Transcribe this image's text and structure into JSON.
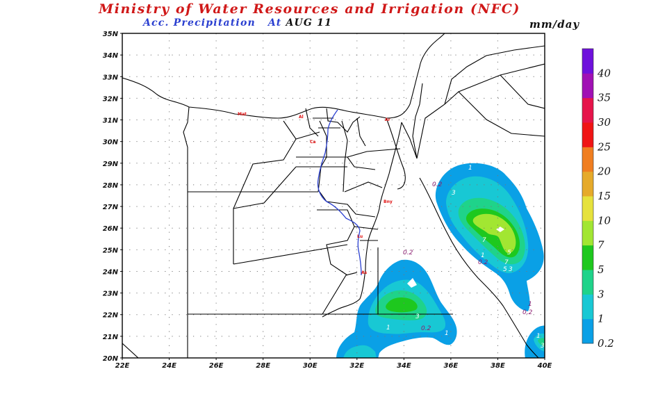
{
  "header": {
    "title": "Ministry of Water Resources and Irrigation (NFC)",
    "subtitle_prefix": "Acc. Precipitation",
    "subtitle_at": "At",
    "subtitle_date": "AUG 11",
    "units": "mm/day"
  },
  "axes": {
    "lat_labels": [
      "35N",
      "34N",
      "33N",
      "32N",
      "31N",
      "30N",
      "29N",
      "28N",
      "27N",
      "26N",
      "25N",
      "24N",
      "23N",
      "22N",
      "21N",
      "20N"
    ],
    "lon_labels": [
      "22E",
      "24E",
      "26E",
      "28E",
      "30E",
      "32E",
      "34E",
      "36E",
      "38E",
      "40E"
    ]
  },
  "colorbar": {
    "levels": [
      "0.2",
      "1",
      "3",
      "5",
      "7",
      "10",
      "15",
      "20",
      "25",
      "30",
      "35",
      "40"
    ],
    "colors": [
      "#0aa0e6",
      "#18c8d4",
      "#1fd38a",
      "#1ec81e",
      "#a2e632",
      "#e6e23c",
      "#e6aa2a",
      "#f07e20",
      "#f01414",
      "#e6144a",
      "#a010b4",
      "#6e10dc"
    ]
  },
  "map": {
    "river_color": "#2a3fd0",
    "border_color": "#000000",
    "city_labels": [
      "Mat",
      "Al",
      "Ar",
      "Ca",
      "Bny",
      "Lu",
      "As"
    ],
    "contour_labels": [
      "1",
      "3",
      "0.2",
      "7",
      "5",
      "1",
      "0.2",
      "7",
      "5",
      "3",
      "1",
      "0.2",
      "0.2",
      "3",
      "1",
      "0.2",
      "1",
      "1",
      "3"
    ]
  }
}
